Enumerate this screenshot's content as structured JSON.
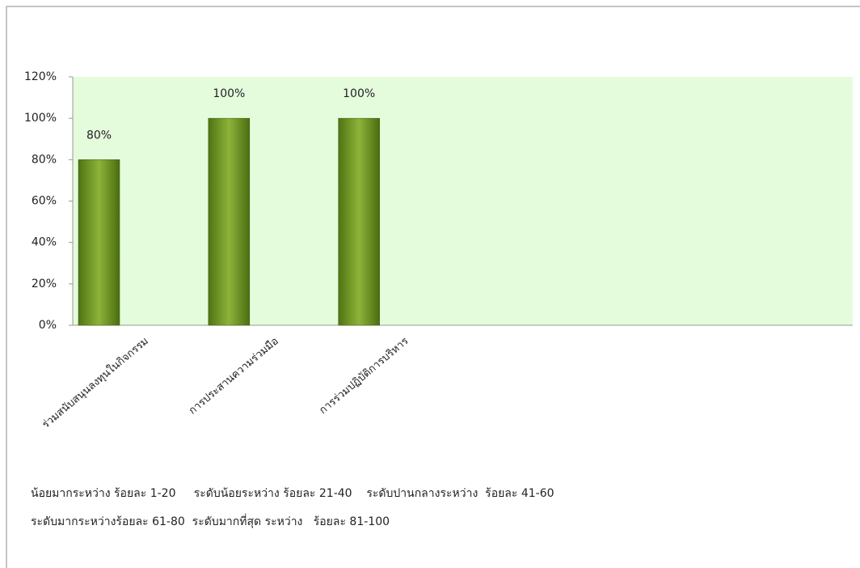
{
  "chart_data": {
    "type": "bar",
    "categories": [
      "ร่วมสนับสนุนลงทุนในกิจกรรม",
      "การประสานความร่วมมือ",
      "การร่วมปฏิบัติการบริหาร",
      null,
      null,
      null
    ],
    "values": [
      80,
      100,
      100,
      null,
      null,
      null
    ],
    "value_labels": [
      "80%",
      "100%",
      "100%",
      null,
      null,
      null
    ],
    "color": "#6f9a1e",
    "ylim": [
      0,
      120
    ],
    "yticks": [
      {
        "value": 0,
        "label": "0%"
      },
      {
        "value": 20,
        "label": "20%"
      },
      {
        "value": 40,
        "label": "40%"
      },
      {
        "value": 60,
        "label": "60%"
      },
      {
        "value": 80,
        "label": "80%"
      },
      {
        "value": 100,
        "label": "100%"
      },
      {
        "value": 120,
        "label": "120%"
      }
    ],
    "grid": false,
    "notes": [
      "น้อยมากระหว่าง ร้อยละ 1-20     ระดับน้อยระหว่าง ร้อยละ 21-40    ระดับปานกลางระหว่าง  ร้อยละ 41-60",
      "ระดับมากระหว่างร้อยละ 61-80  ระดับมากที่สุด ระหว่าง   ร้อยละ 81-100"
    ]
  }
}
